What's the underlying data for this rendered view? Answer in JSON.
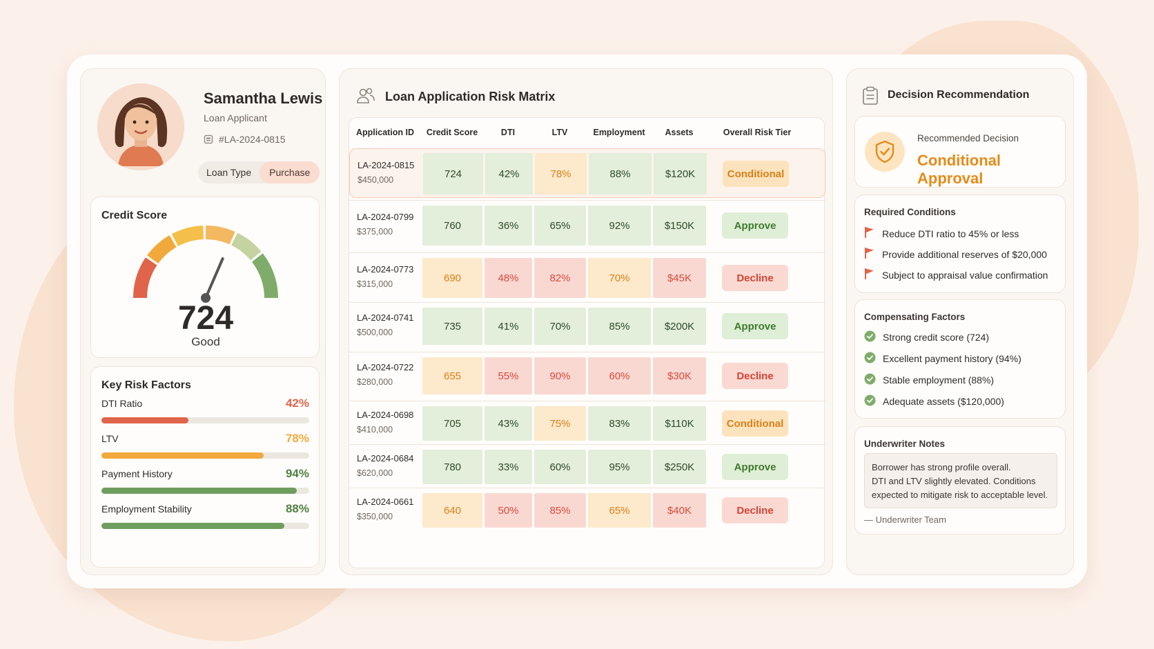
{
  "applicant": {
    "name": "Samantha Lewis",
    "role": "Loan Applicant",
    "id": "#LA-2024-0815",
    "loan_type_label": "Loan Type",
    "loan_type_value": "Purchase"
  },
  "credit": {
    "title": "Credit Score",
    "score": "724",
    "rating": "Good",
    "gauge_fraction": 0.63
  },
  "risk_factors": {
    "title": "Key Risk Factors",
    "items": [
      {
        "label": "DTI Ratio",
        "value": "42%",
        "pct": 42,
        "color": "#e0644a"
      },
      {
        "label": "LTV",
        "value": "78%",
        "pct": 78,
        "color": "#f2a93b"
      },
      {
        "label": "Payment History",
        "value": "94%",
        "pct": 94,
        "color": "#6e9e5e"
      },
      {
        "label": "Employment Stability",
        "value": "88%",
        "pct": 88,
        "color": "#6e9e5e"
      }
    ]
  },
  "matrix": {
    "title": "Loan Application Risk Matrix",
    "headers": [
      "Application ID",
      "Credit Score",
      "DTI",
      "LTV",
      "Employment",
      "Assets",
      "Overall Risk Tier"
    ],
    "rows": [
      {
        "id": "LA-2024-0815",
        "amount": "$450,000",
        "credit": "724",
        "dti": "42%",
        "ltv": "78%",
        "emp": "88%",
        "assets": "$120K",
        "tier": "Conditional",
        "c": [
          "g",
          "g",
          "y",
          "g",
          "g"
        ],
        "t": "c"
      },
      {
        "id": "LA-2024-0799",
        "amount": "$375,000",
        "credit": "760",
        "dti": "36%",
        "ltv": "65%",
        "emp": "92%",
        "assets": "$150K",
        "tier": "Approve",
        "c": [
          "g",
          "g",
          "g",
          "g",
          "g"
        ],
        "t": "a"
      },
      {
        "id": "LA-2024-0773",
        "amount": "$315,000",
        "credit": "690",
        "dti": "48%",
        "ltv": "82%",
        "emp": "70%",
        "assets": "$45K",
        "tier": "Decline",
        "c": [
          "y",
          "r",
          "r",
          "y",
          "r"
        ],
        "t": "d"
      },
      {
        "id": "LA-2024-0741",
        "amount": "$500,000",
        "credit": "735",
        "dti": "41%",
        "ltv": "70%",
        "emp": "85%",
        "assets": "$200K",
        "tier": "Approve",
        "c": [
          "g",
          "g",
          "g",
          "g",
          "g"
        ],
        "t": "a"
      },
      {
        "id": "LA-2024-0722",
        "amount": "$280,000",
        "credit": "655",
        "dti": "55%",
        "ltv": "90%",
        "emp": "60%",
        "assets": "$30K",
        "tier": "Decline",
        "c": [
          "y",
          "r",
          "r",
          "r",
          "r"
        ],
        "t": "d"
      },
      {
        "id": "LA-2024-0698",
        "amount": "$410,000",
        "credit": "705",
        "dti": "43%",
        "ltv": "75%",
        "emp": "83%",
        "assets": "$110K",
        "tier": "Conditional",
        "c": [
          "g",
          "g",
          "y",
          "g",
          "g"
        ],
        "t": "c"
      },
      {
        "id": "LA-2024-0684",
        "amount": "$620,000",
        "credit": "780",
        "dti": "33%",
        "ltv": "60%",
        "emp": "95%",
        "assets": "$250K",
        "tier": "Approve",
        "c": [
          "g",
          "g",
          "g",
          "g",
          "g"
        ],
        "t": "a"
      },
      {
        "id": "LA-2024-0661",
        "amount": "$350,000",
        "credit": "640",
        "dti": "50%",
        "ltv": "85%",
        "emp": "65%",
        "assets": "$40K",
        "tier": "Decline",
        "c": [
          "y",
          "r",
          "r",
          "y",
          "r"
        ],
        "t": "d"
      }
    ]
  },
  "decision": {
    "title": "Decision Recommendation",
    "rec_label": "Recommended Decision",
    "rec_value": "Conditional Approval",
    "conditions_title": "Required Conditions",
    "conditions": [
      "Reduce DTI ratio to 45% or less",
      "Provide additional reserves of $20,000",
      "Subject to appraisal value confirmation"
    ],
    "comp_title": "Compensating Factors",
    "comp": [
      "Strong credit score (724)",
      "Excellent payment history (94%)",
      "Stable employment (88%)",
      "Adequate assets ($120,000)"
    ],
    "notes_title": "Underwriter Notes",
    "notes": [
      "Borrower has strong profile overall.",
      "DTI and LTV slightly elevated. Conditions",
      "expected to mitigate risk to acceptable level."
    ],
    "signature": "— Underwriter Team"
  }
}
